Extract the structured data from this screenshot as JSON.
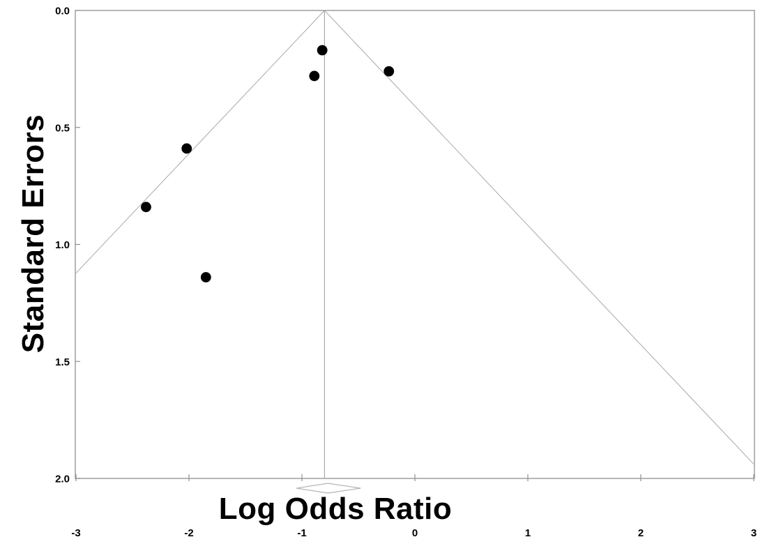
{
  "chart_data": {
    "type": "scatter",
    "title": "",
    "xlabel": "Log Odds Ratio",
    "ylabel": "Standard Errors",
    "xlim": [
      -3,
      3
    ],
    "ylim": [
      0.0,
      2.0
    ],
    "y_axis_inverted": true,
    "grid": false,
    "legend": "none",
    "x_ticks": [
      -3,
      -2,
      -1,
      0,
      1,
      2,
      3
    ],
    "x_tick_labels": [
      "-3",
      "-2",
      "-1",
      "0",
      "1",
      "2",
      "3"
    ],
    "y_ticks": [
      0.0,
      0.5,
      1.0,
      1.5,
      2.0
    ],
    "y_tick_labels": [
      "0.0",
      "0.5",
      "1.0",
      "1.5",
      "2.0"
    ],
    "points": [
      {
        "log_odds_ratio": -0.82,
        "standard_error": 0.17
      },
      {
        "log_odds_ratio": -0.89,
        "standard_error": 0.28
      },
      {
        "log_odds_ratio": -0.23,
        "standard_error": 0.26
      },
      {
        "log_odds_ratio": -2.02,
        "standard_error": 0.59
      },
      {
        "log_odds_ratio": -2.38,
        "standard_error": 0.84
      },
      {
        "log_odds_ratio": -1.85,
        "standard_error": 1.14
      }
    ],
    "funnel": {
      "center_estimate": -0.8,
      "z_multiplier": 1.96,
      "center_line": true
    },
    "summary_diamond": {
      "estimate": -0.77,
      "ci_low": -1.05,
      "ci_high": -0.48
    },
    "colors": {
      "point": "#000000",
      "funnel_line": "#a8a8a8",
      "center_line": "#a8a8a8",
      "diamond_outline": "#b5b5b5",
      "frame": "#8f8f8f",
      "text": "#000000",
      "background": "#ffffff"
    }
  }
}
